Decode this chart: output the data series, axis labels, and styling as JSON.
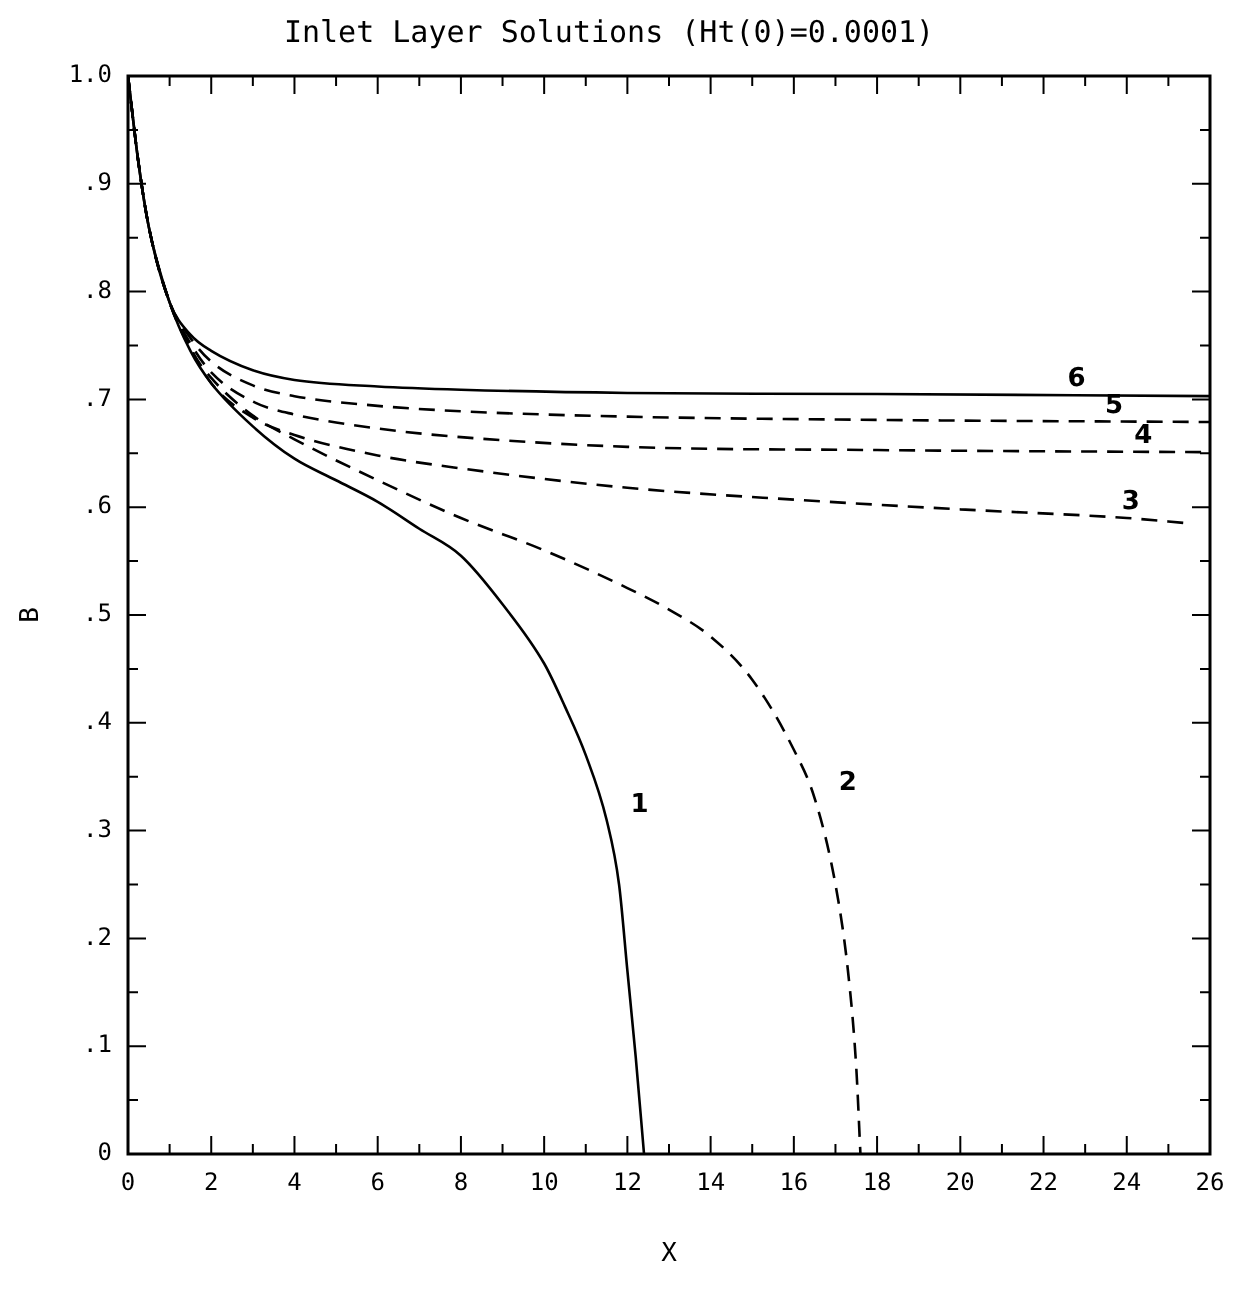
{
  "chart_data": {
    "type": "line",
    "title": "Inlet Layer Solutions (Ht(0)=0.0001)",
    "xlabel": "X",
    "ylabel": "B",
    "xlim": [
      0,
      26
    ],
    "ylim": [
      0,
      1
    ],
    "xticks": [
      0,
      {
        "value": 1,
        "label": null
      },
      2,
      {
        "value": 3,
        "label": null
      },
      4,
      {
        "value": 5,
        "label": null
      },
      6,
      {
        "value": 7,
        "label": null
      },
      8,
      {
        "value": 9,
        "label": null
      },
      10,
      {
        "value": 11,
        "label": null
      },
      12,
      {
        "value": 13,
        "label": null
      },
      14,
      {
        "value": 15,
        "label": null
      },
      16,
      {
        "value": 17,
        "label": null
      },
      18,
      {
        "value": 19,
        "label": null
      },
      20,
      {
        "value": 21,
        "label": null
      },
      22,
      {
        "value": 23,
        "label": null
      },
      24,
      {
        "value": 25,
        "label": null
      },
      26
    ],
    "yticks": [
      0,
      {
        "value": 0.05,
        "label": null
      },
      {
        "value": 0.1,
        "label": ".1"
      },
      {
        "value": 0.15,
        "label": null
      },
      {
        "value": 0.2,
        "label": ".2"
      },
      {
        "value": 0.25,
        "label": null
      },
      {
        "value": 0.3,
        "label": ".3"
      },
      {
        "value": 0.35,
        "label": null
      },
      {
        "value": 0.4,
        "label": ".4"
      },
      {
        "value": 0.45,
        "label": null
      },
      {
        "value": 0.5,
        "label": ".5"
      },
      {
        "value": 0.55,
        "label": null
      },
      {
        "value": 0.6,
        "label": ".6"
      },
      {
        "value": 0.65,
        "label": null
      },
      {
        "value": 0.7,
        "label": ".7"
      },
      {
        "value": 0.75,
        "label": null
      },
      {
        "value": 0.8,
        "label": ".8"
      },
      {
        "value": 0.85,
        "label": null
      },
      {
        "value": 0.9,
        "label": ".9"
      },
      {
        "value": 0.95,
        "label": null
      },
      {
        "value": 1,
        "label": "1.0"
      }
    ],
    "grid": false,
    "legend": false,
    "marker": "none",
    "series": [
      {
        "color": "#000000",
        "line_style": "solid",
        "x": [
          0,
          0.25,
          0.5,
          1,
          1.5,
          2,
          3,
          4,
          5,
          6,
          7,
          8,
          9,
          10,
          10.5,
          11,
          11.5,
          11.8,
          12,
          12.2,
          12.4
        ],
        "values": [
          1,
          0.92,
          0.86,
          0.79,
          0.745,
          0.715,
          0.675,
          0.645,
          0.625,
          0.605,
          0.58,
          0.555,
          0.51,
          0.455,
          0.415,
          0.37,
          0.31,
          0.25,
          0.17,
          0.09,
          0
        ]
      },
      {
        "color": "#000000",
        "line_style": "dashed",
        "x": [
          0,
          0.25,
          0.5,
          1,
          1.5,
          2,
          3,
          4,
          6,
          8,
          10,
          12,
          13,
          14,
          15,
          16,
          16.5,
          17,
          17.3,
          17.5,
          17.6
        ],
        "values": [
          1,
          0.92,
          0.86,
          0.79,
          0.747,
          0.72,
          0.685,
          0.663,
          0.625,
          0.59,
          0.56,
          0.525,
          0.505,
          0.48,
          0.44,
          0.375,
          0.33,
          0.25,
          0.17,
          0.08,
          0
        ]
      },
      {
        "color": "#000000",
        "line_style": "dashed",
        "x": [
          0,
          0.25,
          0.5,
          1,
          1.5,
          2,
          3,
          4,
          6,
          8,
          12,
          16,
          20,
          24,
          25.5
        ],
        "values": [
          1,
          0.92,
          0.86,
          0.79,
          0.748,
          0.715,
          0.683,
          0.667,
          0.648,
          0.636,
          0.618,
          0.607,
          0.598,
          0.59,
          0.585
        ]
      },
      {
        "color": "#000000",
        "line_style": "dashed",
        "x": [
          0,
          0.25,
          0.5,
          1,
          1.5,
          2,
          3,
          4,
          6,
          8,
          12,
          18,
          26
        ],
        "values": [
          1,
          0.92,
          0.86,
          0.79,
          0.752,
          0.725,
          0.698,
          0.686,
          0.673,
          0.665,
          0.656,
          0.653,
          0.651
        ]
      },
      {
        "color": "#000000",
        "line_style": "dashed",
        "x": [
          0,
          0.25,
          0.5,
          1,
          1.5,
          2,
          3,
          4,
          6,
          8,
          12,
          18,
          26
        ],
        "values": [
          1,
          0.92,
          0.86,
          0.79,
          0.757,
          0.735,
          0.713,
          0.703,
          0.694,
          0.689,
          0.684,
          0.681,
          0.679
        ]
      },
      {
        "color": "#000000",
        "line_style": "solid",
        "x": [
          0,
          0.25,
          0.5,
          1,
          1.5,
          2,
          3,
          4,
          6,
          8,
          12,
          18,
          26
        ],
        "values": [
          1,
          0.92,
          0.86,
          0.79,
          0.76,
          0.745,
          0.727,
          0.718,
          0.712,
          0.709,
          0.706,
          0.705,
          0.703
        ]
      }
    ],
    "annotations": [
      {
        "text": "1",
        "x": 11.5,
        "y": 0.31
      },
      {
        "text": "2",
        "x": 16.5,
        "y": 0.33
      },
      {
        "text": "3",
        "x": 23.3,
        "y": 0.591
      },
      {
        "text": "4",
        "x": 23.6,
        "y": 0.652
      },
      {
        "text": "5",
        "x": 22.9,
        "y": 0.68
      },
      {
        "text": "6",
        "x": 22,
        "y": 0.705
      }
    ]
  }
}
